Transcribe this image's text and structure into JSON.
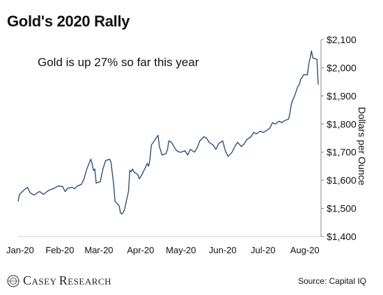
{
  "chart_data": {
    "type": "line",
    "title": "Gold's 2020 Rally",
    "ylabel": "Dollars per Ounce",
    "xlabel": "",
    "ylim": [
      1400,
      2100
    ],
    "yticks": [
      "$2,100",
      "$2,000",
      "$1,900",
      "$1,800",
      "$1,700",
      "$1,600",
      "$1,500",
      "$1,400"
    ],
    "xticks": [
      "Jan-20",
      "Feb-20",
      "Mar-20",
      "Apr-20",
      "May-20",
      "Jun-20",
      "Jul-20",
      "Aug-20"
    ],
    "annotation": "Gold is up 27% so far this year",
    "grid": false,
    "line_color": "#2e5178",
    "series": [
      {
        "values": [
          [
            "2020-01-01",
            1525
          ],
          [
            "2020-01-02",
            1550
          ],
          [
            "2020-01-06",
            1568
          ],
          [
            "2020-01-08",
            1575
          ],
          [
            "2020-01-10",
            1555
          ],
          [
            "2020-01-13",
            1548
          ],
          [
            "2020-01-15",
            1555
          ],
          [
            "2020-01-17",
            1560
          ],
          [
            "2020-01-20",
            1550
          ],
          [
            "2020-01-22",
            1558
          ],
          [
            "2020-01-24",
            1565
          ],
          [
            "2020-01-27",
            1570
          ],
          [
            "2020-01-29",
            1575
          ],
          [
            "2020-01-31",
            1580
          ],
          [
            "2020-02-03",
            1578
          ],
          [
            "2020-02-05",
            1560
          ],
          [
            "2020-02-07",
            1572
          ],
          [
            "2020-02-10",
            1575
          ],
          [
            "2020-02-12",
            1570
          ],
          [
            "2020-02-14",
            1580
          ],
          [
            "2020-02-17",
            1585
          ],
          [
            "2020-02-19",
            1605
          ],
          [
            "2020-02-21",
            1640
          ],
          [
            "2020-02-24",
            1675
          ],
          [
            "2020-02-25",
            1660
          ],
          [
            "2020-02-26",
            1635
          ],
          [
            "2020-02-27",
            1640
          ],
          [
            "2020-02-28",
            1590
          ],
          [
            "2020-03-02",
            1595
          ],
          [
            "2020-03-04",
            1640
          ],
          [
            "2020-03-06",
            1670
          ],
          [
            "2020-03-09",
            1675
          ],
          [
            "2020-03-10",
            1665
          ],
          [
            "2020-03-12",
            1585
          ],
          [
            "2020-03-13",
            1525
          ],
          [
            "2020-03-16",
            1510
          ],
          [
            "2020-03-17",
            1485
          ],
          [
            "2020-03-18",
            1480
          ],
          [
            "2020-03-19",
            1485
          ],
          [
            "2020-03-20",
            1495
          ],
          [
            "2020-03-23",
            1560
          ],
          [
            "2020-03-24",
            1635
          ],
          [
            "2020-03-25",
            1630
          ],
          [
            "2020-03-26",
            1640
          ],
          [
            "2020-03-27",
            1630
          ],
          [
            "2020-03-30",
            1620
          ],
          [
            "2020-03-31",
            1605
          ],
          [
            "2020-04-02",
            1620
          ],
          [
            "2020-04-06",
            1660
          ],
          [
            "2020-04-07",
            1650
          ],
          [
            "2020-04-08",
            1675
          ],
          [
            "2020-04-09",
            1725
          ],
          [
            "2020-04-14",
            1760
          ],
          [
            "2020-04-15",
            1720
          ],
          [
            "2020-04-17",
            1690
          ],
          [
            "2020-04-20",
            1695
          ],
          [
            "2020-04-21",
            1710
          ],
          [
            "2020-04-22",
            1740
          ],
          [
            "2020-04-24",
            1735
          ],
          [
            "2020-04-27",
            1710
          ],
          [
            "2020-04-28",
            1705
          ],
          [
            "2020-04-30",
            1700
          ],
          [
            "2020-05-01",
            1700
          ],
          [
            "2020-05-04",
            1705
          ],
          [
            "2020-05-06",
            1690
          ],
          [
            "2020-05-08",
            1710
          ],
          [
            "2020-05-11",
            1700
          ],
          [
            "2020-05-13",
            1715
          ],
          [
            "2020-05-15",
            1740
          ],
          [
            "2020-05-18",
            1755
          ],
          [
            "2020-05-20",
            1750
          ],
          [
            "2020-05-22",
            1735
          ],
          [
            "2020-05-25",
            1725
          ],
          [
            "2020-05-27",
            1710
          ],
          [
            "2020-05-29",
            1730
          ],
          [
            "2020-06-01",
            1740
          ],
          [
            "2020-06-03",
            1705
          ],
          [
            "2020-06-05",
            1685
          ],
          [
            "2020-06-08",
            1700
          ],
          [
            "2020-06-10",
            1720
          ],
          [
            "2020-06-12",
            1735
          ],
          [
            "2020-06-15",
            1720
          ],
          [
            "2020-06-17",
            1730
          ],
          [
            "2020-06-19",
            1745
          ],
          [
            "2020-06-22",
            1755
          ],
          [
            "2020-06-24",
            1770
          ],
          [
            "2020-06-26",
            1765
          ],
          [
            "2020-06-29",
            1775
          ],
          [
            "2020-07-01",
            1770
          ],
          [
            "2020-07-03",
            1775
          ],
          [
            "2020-07-06",
            1785
          ],
          [
            "2020-07-08",
            1805
          ],
          [
            "2020-07-10",
            1800
          ],
          [
            "2020-07-13",
            1810
          ],
          [
            "2020-07-15",
            1805
          ],
          [
            "2020-07-17",
            1812
          ],
          [
            "2020-07-20",
            1818
          ],
          [
            "2020-07-21",
            1840
          ],
          [
            "2020-07-22",
            1870
          ],
          [
            "2020-07-23",
            1885
          ],
          [
            "2020-07-24",
            1895
          ],
          [
            "2020-07-27",
            1935
          ],
          [
            "2020-07-28",
            1940
          ],
          [
            "2020-07-29",
            1960
          ],
          [
            "2020-07-30",
            1965
          ],
          [
            "2020-07-31",
            1975
          ],
          [
            "2020-08-03",
            1975
          ],
          [
            "2020-08-04",
            2015
          ],
          [
            "2020-08-05",
            2035
          ],
          [
            "2020-08-06",
            2060
          ],
          [
            "2020-08-07",
            2035
          ],
          [
            "2020-08-10",
            2030
          ],
          [
            "2020-08-11",
            1940
          ]
        ]
      }
    ]
  },
  "footer": {
    "logo_text": "Casey Research",
    "source": "Source: Capital IQ"
  }
}
